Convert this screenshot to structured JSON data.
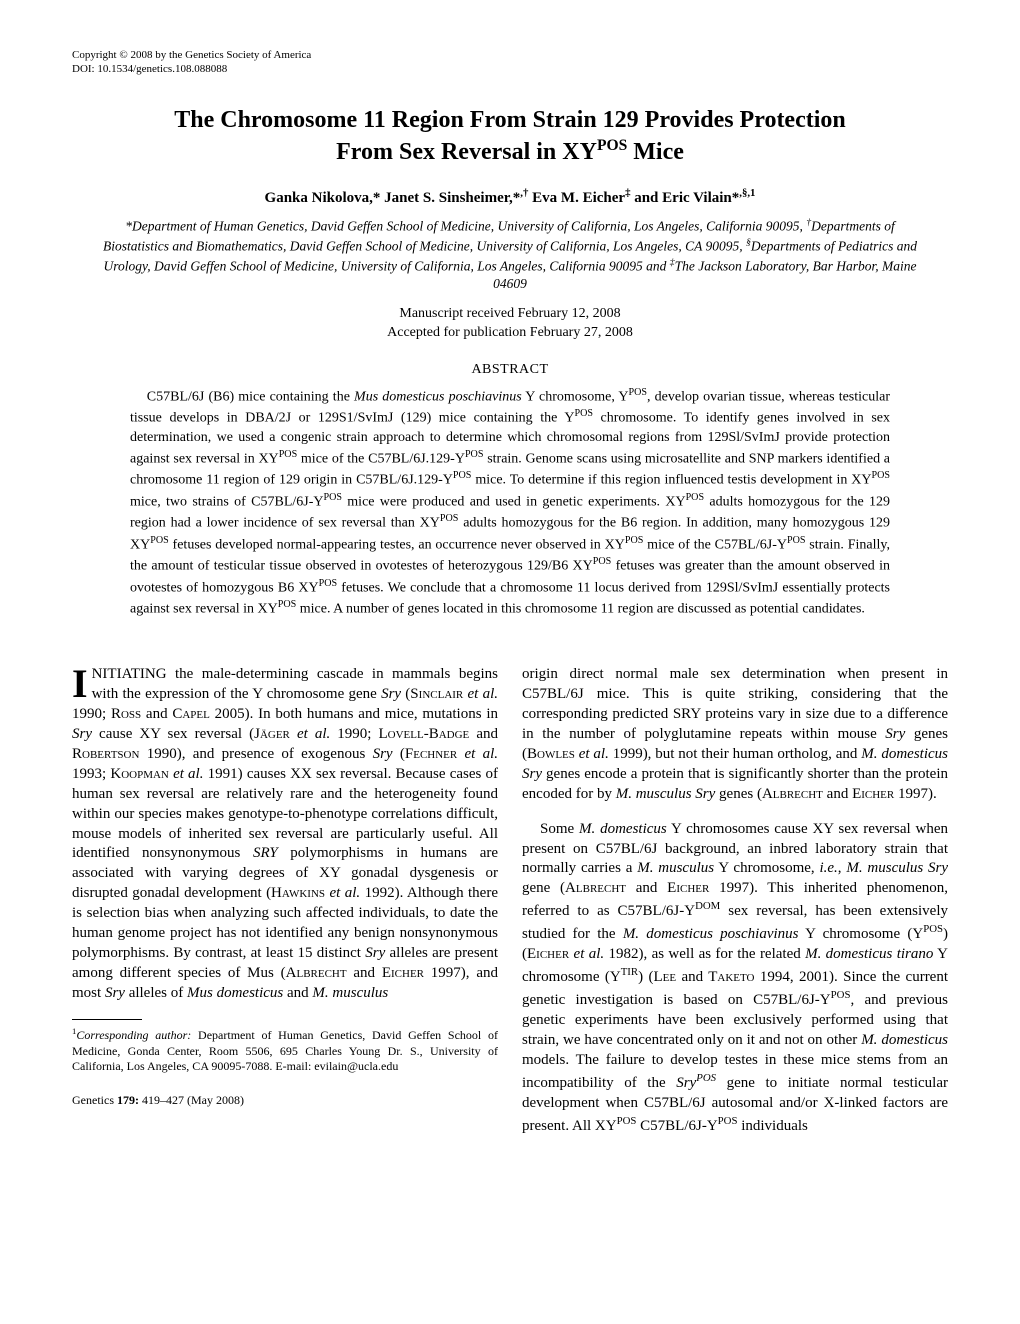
{
  "copyright": {
    "line1": "Copyright © 2008 by the Genetics Society of America",
    "line2": "DOI: 10.1534/genetics.108.088088"
  },
  "title_line1": "The Chromosome 11 Region From Strain 129 Provides Protection",
  "title_line2": "From Sex Reversal in XYPOS Mice",
  "authors_html": "Ganka Nikolova,* Janet S. Sinsheimer,*<sup>,†</sup> Eva M. Eicher<sup>‡</sup> and Eric Vilain*<sup>,§,1</sup>",
  "affiliations_html": "*Department of Human Genetics, David Geffen School of Medicine, University of California, Los Angeles, California 90095, <sup>†</sup>Departments of Biostatistics and Biomathematics, David Geffen School of Medicine, University of California, Los Angeles, CA 90095, <sup>§</sup>Departments of Pediatrics and Urology, David Geffen School of Medicine, University of California, Los Angeles, California 90095 and <sup>‡</sup>The Jackson Laboratory, Bar Harbor, Maine 04609",
  "dates": {
    "received": "Manuscript received February 12, 2008",
    "accepted": "Accepted for publication February 27, 2008"
  },
  "abstract": {
    "heading": "ABSTRACT",
    "body_html": "C57BL/6J (B6) mice containing the <i>Mus domesticus poschiavinus</i> Y chromosome, Y<sup>POS</sup>, develop ovarian tissue, whereas testicular tissue develops in DBA/2J or 129S1/SvImJ (129) mice containing the Y<sup>POS</sup> chromosome. To identify genes involved in sex determination, we used a congenic strain approach to determine which chromosomal regions from 129Sl/SvImJ provide protection against sex reversal in XY<sup>POS</sup> mice of the C57BL/6J.129-Y<sup>POS</sup> strain. Genome scans using microsatellite and SNP markers identified a chromosome 11 region of 129 origin in C57BL/6J.129-Y<sup>POS</sup> mice. To determine if this region influenced testis development in XY<sup>POS</sup> mice, two strains of C57BL/6J-Y<sup>POS</sup> mice were produced and used in genetic experiments. XY<sup>POS</sup> adults homozygous for the 129 region had a lower incidence of sex reversal than XY<sup>POS</sup> adults homozygous for the B6 region. In addition, many homozygous 129 XY<sup>POS</sup> fetuses developed normal-appearing testes, an occurrence never observed in XY<sup>POS</sup> mice of the C57BL/6J-Y<sup>POS</sup> strain. Finally, the amount of testicular tissue observed in ovotestes of heterozygous 129/B6 XY<sup>POS</sup> fetuses was greater than the amount observed in ovotestes of homozygous B6 XY<sup>POS</sup> fetuses. We conclude that a chromosome 11 locus derived from 129Sl/SvImJ essentially protects against sex reversal in XY<sup>POS</sup> mice. A number of genes located in this chromosome 11 region are discussed as potential candidates."
  },
  "body": {
    "dropcap": "I",
    "para1_html": "NITIATING the male-determining cascade in mammals begins with the expression of the Y chromosome gene <i>Sry</i> (S<span style='font-variant:small-caps'>inclair</span> <i>et al.</i> 1990; R<span style='font-variant:small-caps'>oss</span> and C<span style='font-variant:small-caps'>apel</span> 2005). In both humans and mice, mutations in <i>Sry</i> cause XY sex reversal (J<span style='font-variant:small-caps'>äger</span> <i>et al.</i> 1990; L<span style='font-variant:small-caps'>ovell</span>-B<span style='font-variant:small-caps'>adge</span> and R<span style='font-variant:small-caps'>obertson</span> 1990), and presence of exogenous <i>Sry</i> (F<span style='font-variant:small-caps'>echner</span> <i>et al.</i> 1993; K<span style='font-variant:small-caps'>oopman</span> <i>et al.</i> 1991) causes XX sex reversal. Because cases of human sex reversal are relatively rare and the heterogeneity found within our species makes genotype-to-phenotype correlations difficult, mouse models of inherited sex reversal are particularly useful. All identified nonsynonymous <i>SRY</i> polymorphisms in humans are associated with varying degrees of XY gonadal dysgenesis or disrupted gonadal development (H<span style='font-variant:small-caps'>awkins</span> <i>et al.</i> 1992). Although there is selection bias when analyzing such affected individuals, to date the human genome project has not identified any benign nonsynonymous polymorphisms. By contrast, at least 15 distinct <i>Sry</i> alleles are present among different species of Mus (A<span style='font-variant:small-caps'>lbrecht</span> and E<span style='font-variant:small-caps'>icher</span> 1997), and most <i>Sry</i> alleles of <i>Mus domesticus</i> and <i>M. musculus</i>",
    "para2_html": "origin direct normal male sex determination when present in C57BL/6J mice. This is quite striking, considering that the corresponding predicted SRY proteins vary in size due to a difference in the number of polyglutamine repeats within mouse <i>Sry</i> genes (B<span style='font-variant:small-caps'>owles</span> <i>et al.</i> 1999), but not their human ortholog, and <i>M. domesticus Sry</i> genes encode a protein that is significantly shorter than the protein encoded for by <i>M. musculus Sry</i> genes (A<span style='font-variant:small-caps'>lbrecht</span> and E<span style='font-variant:small-caps'>icher</span> 1997).",
    "para3_html": "Some <i>M. domesticus</i> Y chromosomes cause XY sex reversal when present on C57BL/6J background, an inbred laboratory strain that normally carries a <i>M. musculus</i> Y chromosome, <i>i.e.</i>, <i>M. musculus Sry</i> gene (A<span style='font-variant:small-caps'>lbrecht</span> and E<span style='font-variant:small-caps'>icher</span> 1997). This inherited phenomenon, referred to as C57BL/6J-Y<sup>DOM</sup> sex reversal, has been extensively studied for the <i>M. domesticus poschiavinus</i> Y chromosome (Y<sup>POS</sup>) (E<span style='font-variant:small-caps'>icher</span> <i>et al.</i> 1982), as well as for the related <i>M. domesticus tirano</i> Y chromosome (Y<sup>TIR</sup>) (L<span style='font-variant:small-caps'>ee</span> and T<span style='font-variant:small-caps'>aketo</span> 1994, 2001). Since the current genetic investigation is based on C57BL/6J-Y<sup>POS</sup>, and previous genetic experiments have been exclusively performed using that strain, we have concentrated only on it and not on other <i>M. domesticus</i> models. The failure to develop testes in these mice stems from an incompatibility of the <i>Sry<sup>POS</sup></i> gene to initiate normal testicular development when C57BL/6J autosomal and/or X-linked factors are present. All XY<sup>POS</sup> C57BL/6J-Y<sup>POS</sup> individuals"
  },
  "footnote_html": "<sup>1</sup><i>Corresponding author:</i> Department of Human Genetics, David Geffen School of Medicine, Gonda Center, Room 5506, 695 Charles Young Dr. S., University of California, Los Angeles, CA 90095-7088. E-mail: evilain@ucla.edu",
  "footer": "Genetics 179: 419–427 (May 2008)"
}
